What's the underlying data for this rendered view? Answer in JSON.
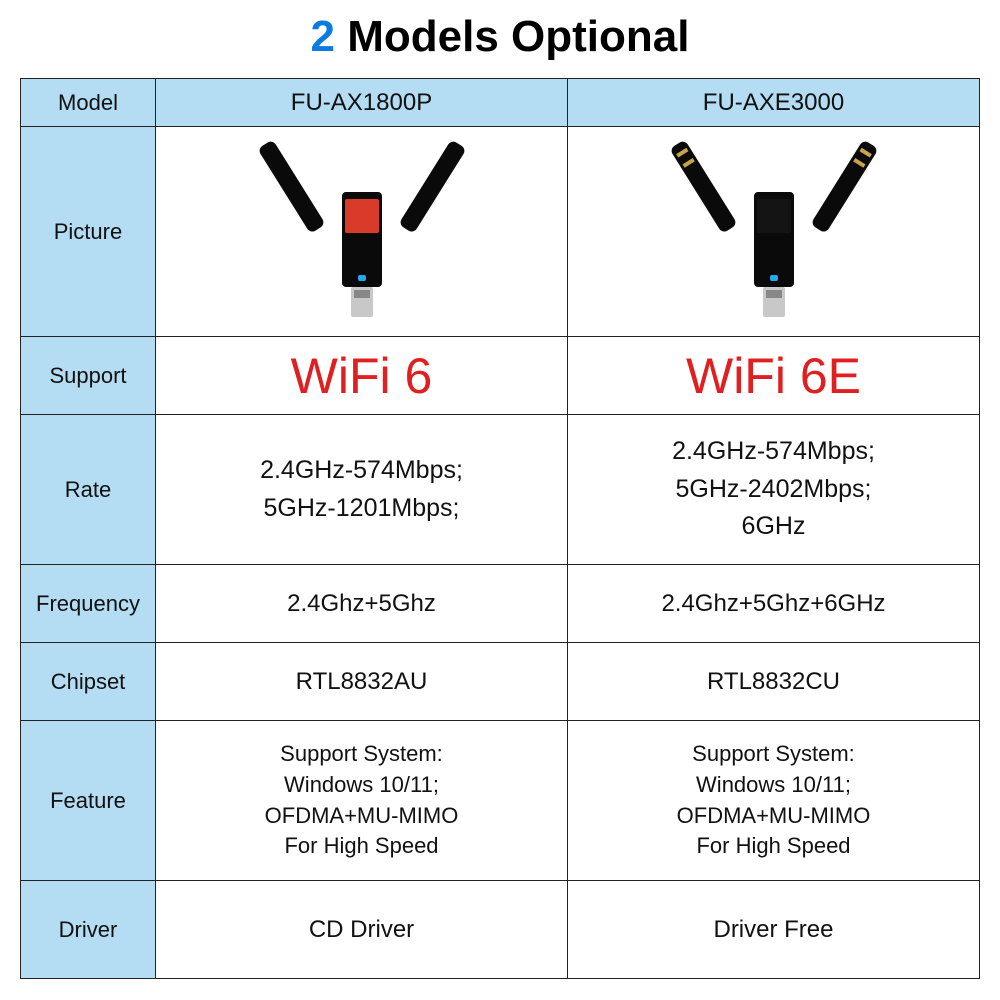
{
  "title": {
    "number": "2",
    "text": "Models Optional",
    "number_color": "#0a7be0"
  },
  "table": {
    "border_color": "#222222",
    "header_bg": "#b4dcf2",
    "label_bg": "#b4dcf2",
    "label_fontsize": 22,
    "cell_fontsize": 24,
    "support_color": "#e02020",
    "support_fontsize": 50,
    "rows": {
      "model": {
        "label": "Model",
        "a": "FU-AX1800P",
        "b": "FU-AXE3000"
      },
      "picture": {
        "label": "Picture",
        "a_accent": "red",
        "a_gold": false,
        "b_accent": "black",
        "b_gold": true
      },
      "support": {
        "label": "Support",
        "a": "WiFi 6",
        "b": "WiFi 6E"
      },
      "rate": {
        "label": "Rate",
        "a1": "2.4GHz-574Mbps;",
        "a2": "5GHz-1201Mbps;",
        "a3": "",
        "b1": "2.4GHz-574Mbps;",
        "b2": "5GHz-2402Mbps;",
        "b3": "6GHz"
      },
      "frequency": {
        "label": "Frequency",
        "a": "2.4Ghz+5Ghz",
        "b": "2.4Ghz+5Ghz+6GHz"
      },
      "chipset": {
        "label": "Chipset",
        "a": "RTL8832AU",
        "b": "RTL8832CU"
      },
      "feature": {
        "label": "Feature",
        "a1": "Support System:",
        "a2": "Windows 10/11;",
        "a3": "OFDMA+MU-MIMO",
        "a4": "For High Speed",
        "b1": "Support System:",
        "b2": "Windows 10/11;",
        "b3": "OFDMA+MU-MIMO",
        "b4": "For High Speed"
      },
      "driver": {
        "label": "Driver",
        "a": "CD Driver",
        "b": "Driver Free"
      }
    }
  }
}
